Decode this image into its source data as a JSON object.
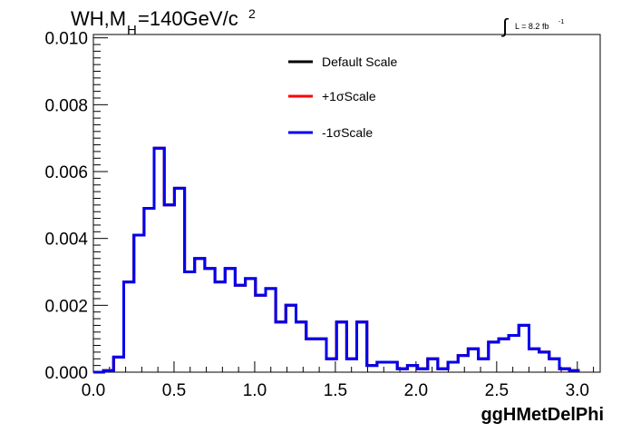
{
  "header": {
    "title_main": "WH,M",
    "title_sub": "H",
    "title_rest": "=140GeV/c",
    "title_sup": "2",
    "lumi_text": "L = 8.2 fb",
    "lumi_sup": "-1"
  },
  "chart_data": {
    "type": "line",
    "style": "step-histogram",
    "xlabel": "ggHMetDelPhi",
    "ylabel": "",
    "xlim": [
      0.0,
      3.1416
    ],
    "ylim": [
      0.0,
      0.0101
    ],
    "x_ticks": [
      "0.0",
      "0.5",
      "1.0",
      "1.5",
      "2.0",
      "2.5",
      "3.0"
    ],
    "y_ticks": [
      "0.000",
      "0.002",
      "0.004",
      "0.006",
      "0.008",
      "0.010"
    ],
    "legend_position": "top-center",
    "bin_width": 0.0628,
    "bin_edges_start": 0.0,
    "series": [
      {
        "name": "Default Scale",
        "color": "#000000",
        "values": [
          0.0,
          5e-05,
          0.00045,
          0.0027,
          0.0041,
          0.0049,
          0.0067,
          0.005,
          0.0055,
          0.003,
          0.0034,
          0.0031,
          0.0027,
          0.0031,
          0.0026,
          0.0028,
          0.0023,
          0.0025,
          0.0015,
          0.002,
          0.0015,
          0.001,
          0.001,
          0.0004,
          0.0015,
          0.0004,
          0.0015,
          0.0002,
          0.0003,
          0.0003,
          0.0001,
          0.0002,
          0.0001,
          0.0004,
          0.0001,
          0.0003,
          0.0005,
          0.0007,
          0.0004,
          0.0009,
          0.001,
          0.0011,
          0.0014,
          0.0007,
          0.0006,
          0.0004,
          0.0001,
          5e-05
        ]
      },
      {
        "name": "+1σScale",
        "color": "#ff0000",
        "values": [
          0.0,
          5e-05,
          0.00045,
          0.0027,
          0.0041,
          0.0049,
          0.0067,
          0.005,
          0.0055,
          0.003,
          0.0034,
          0.0031,
          0.0027,
          0.0031,
          0.0026,
          0.0028,
          0.0023,
          0.0025,
          0.0015,
          0.002,
          0.0015,
          0.001,
          0.001,
          0.0004,
          0.0015,
          0.0004,
          0.0015,
          0.0002,
          0.0003,
          0.0003,
          0.0001,
          0.0002,
          0.0001,
          0.0004,
          0.0001,
          0.0003,
          0.0005,
          0.0007,
          0.0004,
          0.0009,
          0.001,
          0.0011,
          0.0014,
          0.0007,
          0.0006,
          0.0004,
          0.0001,
          5e-05
        ]
      },
      {
        "name": "-1σScale",
        "color": "#0000ee",
        "values": [
          0.0,
          5e-05,
          0.00045,
          0.0027,
          0.0041,
          0.0049,
          0.0067,
          0.005,
          0.0055,
          0.003,
          0.0034,
          0.0031,
          0.0027,
          0.0031,
          0.0026,
          0.0028,
          0.0023,
          0.0025,
          0.0015,
          0.002,
          0.0015,
          0.001,
          0.001,
          0.0004,
          0.0015,
          0.0004,
          0.0015,
          0.0002,
          0.0003,
          0.0003,
          0.0001,
          0.0002,
          0.0001,
          0.0004,
          0.0001,
          0.0003,
          0.0005,
          0.0007,
          0.0004,
          0.0009,
          0.001,
          0.0011,
          0.0014,
          0.0007,
          0.0006,
          0.0004,
          0.0001,
          5e-05
        ]
      }
    ]
  }
}
